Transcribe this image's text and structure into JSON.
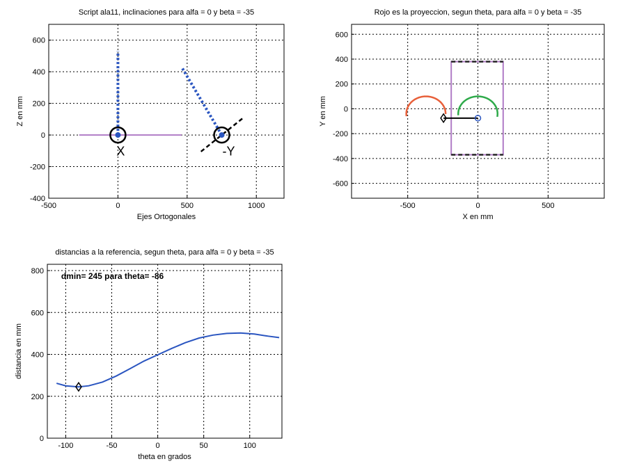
{
  "chart_data": [
    {
      "type": "line",
      "title": "Script ala11, inclinaciones para alfa = 0  y beta = -35",
      "xlabel": "Ejes Ortogonales",
      "ylabel": "Z en mm",
      "xlim": [
        -500,
        1200
      ],
      "ylim": [
        -400,
        700
      ],
      "xticks": [
        -500,
        0,
        500,
        1000
      ],
      "yticks": [
        -400,
        -200,
        0,
        200,
        400,
        600
      ],
      "grid": true,
      "series": [
        {
          "kind": "line",
          "color": "#b07cc6",
          "x": [
            -280,
            460
          ],
          "y": [
            0,
            0
          ]
        },
        {
          "kind": "dotted",
          "color": "#2a55c0",
          "x": [
            0,
            0
          ],
          "y": [
            0,
            530
          ]
        },
        {
          "kind": "dotted",
          "color": "#2a55c0",
          "x": [
            750,
            460
          ],
          "y": [
            0,
            430
          ]
        },
        {
          "kind": "dashed",
          "color": "#000000",
          "x": [
            600,
            900
          ],
          "y": [
            -105,
            105
          ]
        },
        {
          "kind": "ring",
          "color": "#000000",
          "x": [
            0
          ],
          "y": [
            0
          ]
        },
        {
          "kind": "ring",
          "color": "#000000",
          "x": [
            750
          ],
          "y": [
            0
          ]
        }
      ],
      "annotations": [
        {
          "text": "X",
          "x": 20,
          "y": -130
        },
        {
          "text": "-Y",
          "x": 800,
          "y": -130
        }
      ]
    },
    {
      "type": "line",
      "title": "Rojo es la proyeccion, segun theta, para alfa = 0  y beta = -35",
      "xlabel": "X en mm",
      "ylabel": "Y en mm",
      "xlim": [
        -900,
        900
      ],
      "ylim": [
        -720,
        680
      ],
      "xticks": [
        -500,
        0,
        500
      ],
      "yticks": [
        -600,
        -400,
        -200,
        0,
        200,
        400,
        600
      ],
      "grid": true,
      "series": [
        {
          "kind": "rect",
          "color": "#b07cc6",
          "x": [
            -190,
            180
          ],
          "y": [
            -370,
            380
          ]
        },
        {
          "kind": "dashed",
          "color": "#222222",
          "x": [
            -190,
            180
          ],
          "y": [
            380,
            380
          ]
        },
        {
          "kind": "dashed",
          "color": "#222222",
          "x": [
            -190,
            180
          ],
          "y": [
            -370,
            -370
          ]
        },
        {
          "kind": "arc",
          "color": "#e8603a",
          "cx": -370,
          "cy": -40,
          "r": 140,
          "from": -1,
          "to": 190
        },
        {
          "kind": "arc",
          "color": "#2eaa4a",
          "cx": 0,
          "cy": -40,
          "r": 140,
          "from": -10,
          "to": 185
        },
        {
          "kind": "line",
          "color": "#000000",
          "x": [
            -245,
            0
          ],
          "y": [
            -75,
            -75
          ]
        },
        {
          "kind": "diamond",
          "color": "#000000",
          "x": [
            -245
          ],
          "y": [
            -75
          ]
        },
        {
          "kind": "ring-small",
          "color": "#2a55c0",
          "x": [
            0
          ],
          "y": [
            -75
          ]
        }
      ]
    },
    {
      "type": "line",
      "title": "distancias a la referencia, segun theta, para alfa = 0  y beta = -35",
      "xlabel": "theta en grados",
      "ylabel": "distancia en mm",
      "xlim": [
        -120,
        135
      ],
      "ylim": [
        0,
        830
      ],
      "xticks": [
        -100,
        -50,
        0,
        50,
        100
      ],
      "yticks": [
        0,
        200,
        400,
        600,
        800
      ],
      "grid": true,
      "series": [
        {
          "kind": "line",
          "color": "#2a55c0",
          "x": [
            -110,
            -100,
            -86,
            -75,
            -60,
            -45,
            -30,
            -15,
            0,
            15,
            30,
            45,
            60,
            75,
            90,
            105,
            120,
            132
          ],
          "y": [
            262,
            250,
            245,
            250,
            268,
            297,
            332,
            368,
            398,
            428,
            456,
            478,
            492,
            500,
            502,
            497,
            487,
            480
          ]
        },
        {
          "kind": "diamond",
          "color": "#000000",
          "x": [
            -86
          ],
          "y": [
            245
          ]
        }
      ],
      "annotations": [
        {
          "text": "dmin= 245  para theta= -86",
          "x": -105,
          "y": 760
        }
      ]
    }
  ]
}
